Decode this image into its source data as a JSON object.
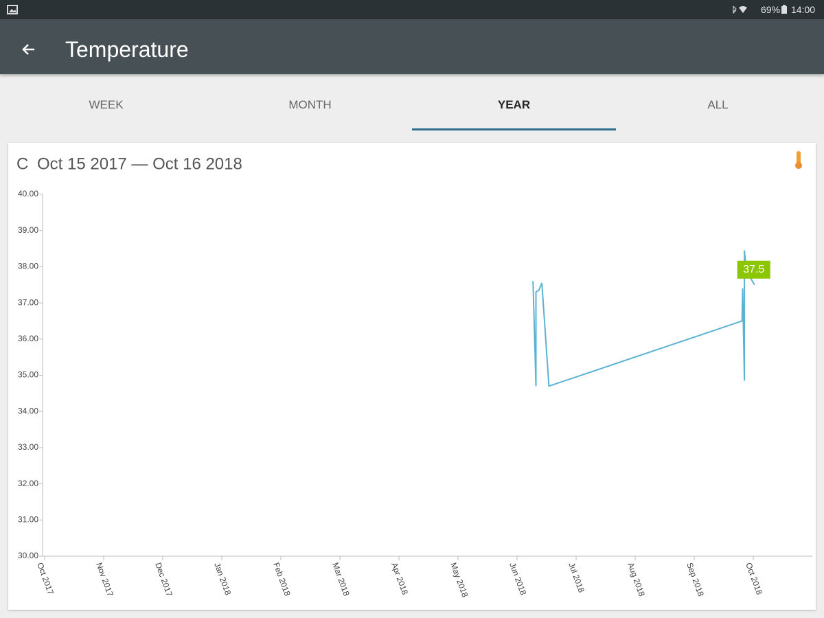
{
  "status_bar": {
    "battery": "69%",
    "time": "14:00"
  },
  "app_bar": {
    "title": "Temperature"
  },
  "tabs": [
    {
      "label": "WEEK",
      "selected": false
    },
    {
      "label": "MONTH",
      "selected": false
    },
    {
      "label": "YEAR",
      "selected": true
    },
    {
      "label": "ALL",
      "selected": false
    }
  ],
  "chart_data": {
    "type": "line",
    "unit": "C",
    "title": "Oct 15 2017 — Oct 16 2018",
    "color": "#5ab2d4",
    "x": [
      8.27,
      8.32,
      8.32,
      8.37,
      8.42,
      8.54,
      11.81,
      11.82,
      11.85,
      11.85,
      11.88,
      12.02
    ],
    "values": [
      37.6,
      34.7,
      37.3,
      37.35,
      37.55,
      34.7,
      36.5,
      37.4,
      34.85,
      38.45,
      37.9,
      37.5
    ],
    "tooltip": "37.5",
    "tooltip_color": "#8cc600",
    "xlim": [
      0,
      13
    ],
    "ylim": [
      30,
      40
    ],
    "xticks": [
      {
        "value": 0,
        "label": "Oct 2017"
      },
      {
        "value": 1,
        "label": "Nov 2017"
      },
      {
        "value": 2,
        "label": "Dec 2017"
      },
      {
        "value": 3,
        "label": "Jan 2018"
      },
      {
        "value": 4,
        "label": "Feb 2018"
      },
      {
        "value": 5,
        "label": "Mar 2018"
      },
      {
        "value": 6,
        "label": "Apr 2018"
      },
      {
        "value": 7,
        "label": "May 2018"
      },
      {
        "value": 8,
        "label": "Jun 2018"
      },
      {
        "value": 9,
        "label": "Jul 2018"
      },
      {
        "value": 10,
        "label": "Aug 2018"
      },
      {
        "value": 11,
        "label": "Sep 2018"
      },
      {
        "value": 12,
        "label": "Oct 2018"
      }
    ],
    "yticks": [
      {
        "value": 30,
        "label": "30.00"
      },
      {
        "value": 31,
        "label": "31.00"
      },
      {
        "value": 32,
        "label": "32.00"
      },
      {
        "value": 33,
        "label": "33.00"
      },
      {
        "value": 34,
        "label": "34.00"
      },
      {
        "value": 35,
        "label": "35.00"
      },
      {
        "value": 36,
        "label": "36.00"
      },
      {
        "value": 37,
        "label": "37.00"
      },
      {
        "value": 38,
        "label": "38.00"
      },
      {
        "value": 39,
        "label": "39.00"
      },
      {
        "value": 40,
        "label": "40.00"
      }
    ]
  }
}
